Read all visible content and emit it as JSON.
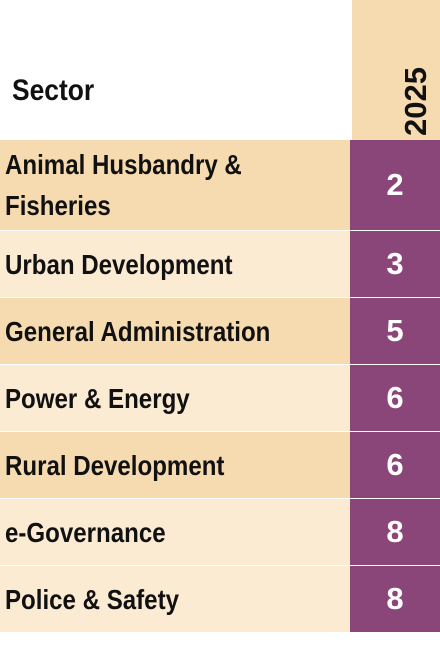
{
  "table": {
    "header_sector": "Sector",
    "header_year": "2025"
  },
  "colors": {
    "value_fill": "#8a4678",
    "row_dark": "#f7dbb0",
    "row_light": "#fbebd3"
  },
  "chart_data": {
    "type": "table",
    "columns": [
      "Sector",
      "2025"
    ],
    "rows": [
      {
        "sector": "Animal Husbandry & Fisheries",
        "value": "2"
      },
      {
        "sector": "Urban Development",
        "value": "3"
      },
      {
        "sector": "General Administration",
        "value": "5"
      },
      {
        "sector": "Power & Energy",
        "value": "6"
      },
      {
        "sector": "Rural Development",
        "value": "6"
      },
      {
        "sector": "e-Governance",
        "value": "8"
      },
      {
        "sector": "Police & Safety",
        "value": "8"
      }
    ]
  }
}
